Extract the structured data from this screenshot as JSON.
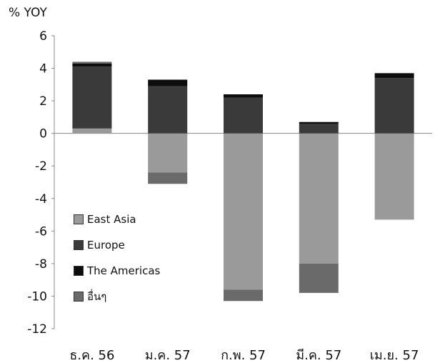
{
  "chart_data": {
    "type": "bar",
    "stacked": true,
    "ylabel": "% YOY",
    "ylim": [
      -12,
      6
    ],
    "yticks": [
      6,
      4,
      2,
      0,
      -2,
      -4,
      -6,
      -8,
      -10,
      -12
    ],
    "categories": [
      "ธ.ค. 56",
      "ม.ค. 57",
      "ก.พ. 57",
      "มี.ค. 57",
      "เม.ย. 57"
    ],
    "series": [
      {
        "name": "East Asia",
        "color": "#9a9a9a",
        "values": [
          0.3,
          -2.4,
          -9.6,
          -8.0,
          -5.3
        ]
      },
      {
        "name": "Europe",
        "color": "#3a3a3a",
        "values": [
          3.8,
          2.9,
          2.2,
          0.6,
          3.4
        ]
      },
      {
        "name": "The Americas",
        "color": "#0d0d0d",
        "values": [
          0.2,
          0.4,
          0.2,
          0.1,
          0.3
        ]
      },
      {
        "name": "อื่นๆ",
        "color": "#6a6a6a",
        "values": [
          0.1,
          -0.7,
          -0.7,
          -1.8,
          0
        ]
      }
    ],
    "legend_position": "left-bottom",
    "grid": false
  }
}
